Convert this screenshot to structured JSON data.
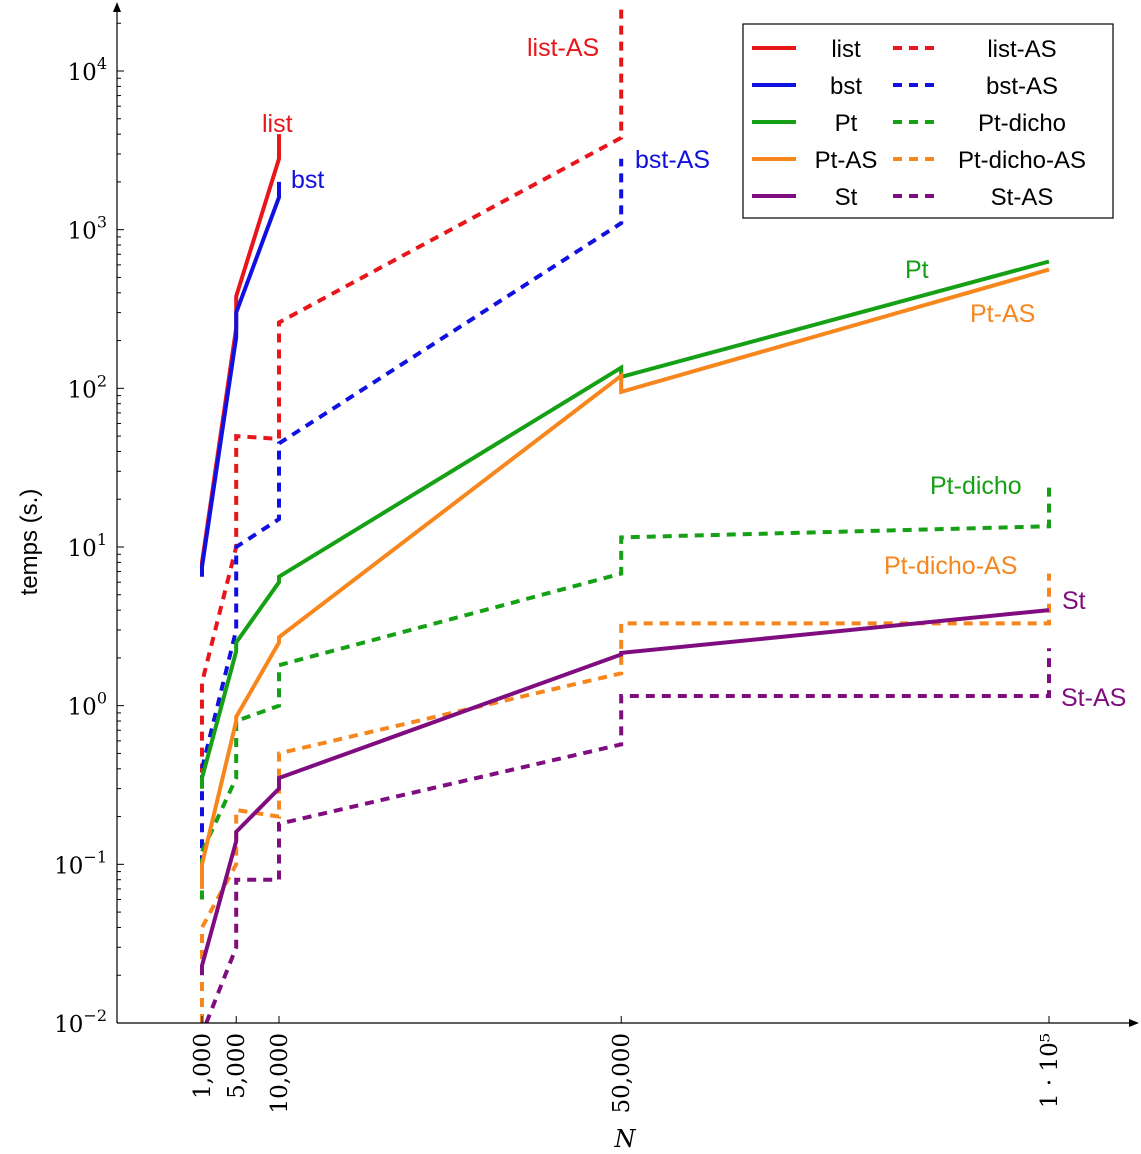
{
  "chart_data": {
    "type": "line",
    "ylabel": "temps (s.)",
    "xlabel": "N",
    "yscale": "log",
    "ylim": [
      0.01,
      25000
    ],
    "xlim": [
      0,
      110000
    ],
    "grid": false,
    "legend_position": "top-right",
    "legend_columns": 2,
    "x_ticks": [
      {
        "value": 1000,
        "label": "1,000"
      },
      {
        "value": 5000,
        "label": "5,000"
      },
      {
        "value": 10000,
        "label": "10,000"
      },
      {
        "value": 50000,
        "label": "50,000"
      },
      {
        "value": 100000,
        "label": "1 · 10⁵"
      }
    ],
    "y_ticks": [
      {
        "value": 0.01,
        "mant": "10",
        "exp": "−2"
      },
      {
        "value": 0.1,
        "mant": "10",
        "exp": "−1"
      },
      {
        "value": 1,
        "mant": "10",
        "exp": "0"
      },
      {
        "value": 10,
        "mant": "10",
        "exp": "1"
      },
      {
        "value": 100,
        "mant": "10",
        "exp": "2"
      },
      {
        "value": 1000,
        "mant": "10",
        "exp": "3"
      },
      {
        "value": 10000,
        "mant": "10",
        "exp": "4"
      }
    ],
    "series": [
      {
        "name": "list",
        "color": "#e8161b",
        "dashed": false,
        "label": "list",
        "points": [
          [
            1000,
            7.0
          ],
          [
            1000,
            8.0
          ],
          [
            5000,
            240
          ],
          [
            5000,
            380
          ],
          [
            10000,
            2800
          ],
          [
            10000,
            4000
          ]
        ]
      },
      {
        "name": "bst",
        "color": "#1010e0",
        "dashed": false,
        "label": "bst",
        "points": [
          [
            1000,
            6.5
          ],
          [
            1000,
            7.5
          ],
          [
            5000,
            210
          ],
          [
            5000,
            300
          ],
          [
            10000,
            1600
          ],
          [
            10000,
            2000
          ]
        ]
      },
      {
        "name": "Pt",
        "color": "#15a015",
        "dashed": false,
        "label": "Pt",
        "points": [
          [
            1000,
            0.3
          ],
          [
            1000,
            0.35
          ],
          [
            5000,
            2.2
          ],
          [
            5000,
            2.5
          ],
          [
            10000,
            6.0
          ],
          [
            10000,
            6.5
          ],
          [
            50000,
            135
          ],
          [
            50000,
            118
          ],
          [
            100000,
            630
          ]
        ]
      },
      {
        "name": "Pt-AS",
        "color": "#f7861d",
        "dashed": false,
        "label": "Pt-AS",
        "points": [
          [
            1000,
            0.07
          ],
          [
            1000,
            0.1
          ],
          [
            5000,
            0.8
          ],
          [
            5000,
            0.85
          ],
          [
            10000,
            2.5
          ],
          [
            10000,
            2.7
          ],
          [
            50000,
            120
          ],
          [
            50000,
            95
          ],
          [
            100000,
            560
          ]
        ]
      },
      {
        "name": "St",
        "color": "#800d80",
        "dashed": false,
        "label": "St",
        "points": [
          [
            1000,
            0.02
          ],
          [
            1000,
            0.023
          ],
          [
            5000,
            0.14
          ],
          [
            5000,
            0.16
          ],
          [
            10000,
            0.3
          ],
          [
            10000,
            0.35
          ],
          [
            50000,
            2.1
          ],
          [
            50000,
            2.15
          ],
          [
            100000,
            4.0
          ]
        ]
      },
      {
        "name": "list-AS",
        "color": "#e8161b",
        "dashed": true,
        "label": "list-AS",
        "points": [
          [
            1000,
            0.3
          ],
          [
            1000,
            1.4
          ],
          [
            5000,
            10
          ],
          [
            5000,
            50
          ],
          [
            10000,
            48
          ],
          [
            10000,
            260
          ],
          [
            50000,
            3800
          ],
          [
            50000,
            30000
          ]
        ]
      },
      {
        "name": "bst-AS",
        "color": "#1010e0",
        "dashed": true,
        "label": "bst-AS",
        "points": [
          [
            1000,
            0.1
          ],
          [
            1000,
            0.4
          ],
          [
            5000,
            3
          ],
          [
            5000,
            10
          ],
          [
            10000,
            15
          ],
          [
            10000,
            45
          ],
          [
            50000,
            1100
          ],
          [
            50000,
            2800
          ]
        ]
      },
      {
        "name": "Pt-dicho",
        "color": "#15a015",
        "dashed": true,
        "label": "Pt-dicho",
        "points": [
          [
            1000,
            0.06
          ],
          [
            1000,
            0.12
          ],
          [
            5000,
            0.35
          ],
          [
            5000,
            0.8
          ],
          [
            10000,
            1.0
          ],
          [
            10000,
            1.8
          ],
          [
            50000,
            6.8
          ],
          [
            50000,
            11.5
          ],
          [
            100000,
            13.5
          ],
          [
            100000,
            25
          ]
        ]
      },
      {
        "name": "Pt-dicho-AS",
        "color": "#f7861d",
        "dashed": true,
        "label": "Pt-dicho-AS",
        "points": [
          [
            1000,
            0.01
          ],
          [
            1000,
            0.04
          ],
          [
            5000,
            0.1
          ],
          [
            5000,
            0.22
          ],
          [
            10000,
            0.2
          ],
          [
            10000,
            0.5
          ],
          [
            50000,
            1.6
          ],
          [
            50000,
            3.3
          ],
          [
            100000,
            3.3
          ],
          [
            100000,
            6.8
          ]
        ]
      },
      {
        "name": "St-AS",
        "color": "#800d80",
        "dashed": true,
        "label": "St-AS",
        "points": [
          [
            1500,
            0.01
          ],
          [
            5000,
            0.03
          ],
          [
            5000,
            0.08
          ],
          [
            10000,
            0.08
          ],
          [
            10000,
            0.18
          ],
          [
            50000,
            0.57
          ],
          [
            50000,
            1.15
          ],
          [
            100000,
            1.15
          ],
          [
            100000,
            2.3
          ]
        ]
      }
    ],
    "legend": [
      {
        "left": "list",
        "right": "list-AS",
        "color": "#e8161b"
      },
      {
        "left": "bst",
        "right": "bst-AS",
        "color": "#1010e0"
      },
      {
        "left": "Pt",
        "right": "Pt-dicho",
        "color": "#15a015"
      },
      {
        "left": "Pt-AS",
        "right": "Pt-dicho-AS",
        "color": "#f7861d"
      },
      {
        "left": "St",
        "right": "St-AS",
        "color": "#800d80"
      }
    ]
  }
}
